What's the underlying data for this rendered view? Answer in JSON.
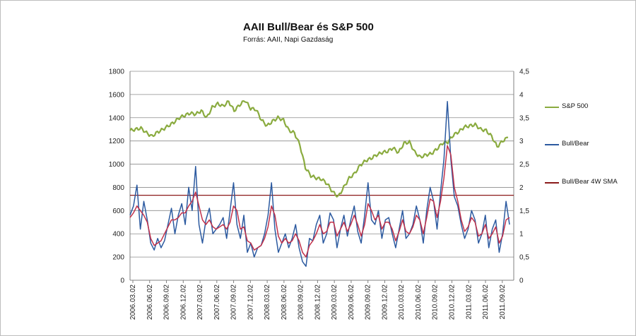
{
  "chart_data": {
    "type": "line",
    "title": "AAII Bull/Bear és S&P 500",
    "subtitle": "Forrás: AAII, Napi Gazdaság",
    "left_axis": {
      "min": 0,
      "max": 1800,
      "ticks": [
        "0",
        "200",
        "400",
        "600",
        "800",
        "1000",
        "1200",
        "1400",
        "1600",
        "1800"
      ]
    },
    "right_axis": {
      "min": 0,
      "max": 4.5,
      "ticks": [
        "0",
        "0,5",
        "1",
        "1,5",
        "2",
        "2,5",
        "3",
        "3,5",
        "4",
        "4,5"
      ]
    },
    "x_tick_labels": [
      "2006.03.02",
      "2006.06.02",
      "2006.09.02",
      "2006.12.02",
      "2007.03.02",
      "2007.06.02",
      "2007.09.02",
      "2007.12.02",
      "2008.03.02",
      "2008.06.02",
      "2008.09.02",
      "2008.12.02",
      "2009.03.02",
      "2009.06.02",
      "2009.09.02",
      "2009.12.02",
      "2010.03.02",
      "2010.06.02",
      "2010.09.02",
      "2010.12.02",
      "2011.03.02",
      "2011.06.02",
      "2011.09.02"
    ],
    "reference_line": {
      "axis": "right",
      "value": 1.83,
      "color": "#8b1a1a"
    },
    "series": [
      {
        "name": "S&P 500",
        "axis": "left",
        "color": "#8aab3f",
        "anchors_month_index": [
          0,
          1,
          2,
          3,
          4,
          5,
          6,
          7,
          8,
          9,
          10,
          11,
          12,
          13,
          14,
          15,
          16,
          17,
          18,
          19,
          20,
          21,
          22,
          23,
          24,
          25,
          26,
          27,
          28,
          29,
          30,
          31,
          32,
          33,
          34,
          35,
          36,
          37,
          38,
          39,
          40,
          41,
          42,
          43,
          44,
          45,
          46,
          47,
          48,
          49,
          50,
          51,
          52,
          53,
          54,
          55,
          56,
          57,
          58,
          59,
          60,
          61,
          62,
          63,
          64,
          65,
          66,
          67,
          68,
          69
        ],
        "values": [
          1290,
          1300,
          1310,
          1270,
          1240,
          1275,
          1300,
          1330,
          1360,
          1400,
          1420,
          1440,
          1430,
          1460,
          1400,
          1490,
          1520,
          1500,
          1540,
          1460,
          1510,
          1550,
          1480,
          1470,
          1380,
          1330,
          1370,
          1400,
          1380,
          1290,
          1270,
          1165,
          970,
          900,
          880,
          870,
          830,
          760,
          720,
          800,
          880,
          920,
          990,
          1030,
          1050,
          1080,
          1100,
          1110,
          1140,
          1100,
          1180,
          1190,
          1100,
          1060,
          1080,
          1090,
          1130,
          1180,
          1190,
          1250,
          1280,
          1320,
          1330,
          1340,
          1300,
          1290,
          1240,
          1150,
          1200,
          1230
        ]
      },
      {
        "name": "Bull/Bear",
        "axis": "right",
        "color": "#2c5aa0",
        "values": [
          1.4,
          1.6,
          2.05,
          1.1,
          1.7,
          1.3,
          0.8,
          0.65,
          0.9,
          0.7,
          0.85,
          1.2,
          1.55,
          1.0,
          1.4,
          1.65,
          1.2,
          2.0,
          1.5,
          2.45,
          1.2,
          0.8,
          1.3,
          1.55,
          1.0,
          1.1,
          1.2,
          1.35,
          0.9,
          1.5,
          2.1,
          1.2,
          0.9,
          1.4,
          0.6,
          0.8,
          0.5,
          0.7,
          0.75,
          1.0,
          1.4,
          2.1,
          1.1,
          0.6,
          0.8,
          1.0,
          0.7,
          0.9,
          1.2,
          0.7,
          0.4,
          0.3,
          0.9,
          0.85,
          1.2,
          1.4,
          0.8,
          1.0,
          1.45,
          1.3,
          0.7,
          1.1,
          1.4,
          0.95,
          1.3,
          1.6,
          1.05,
          0.8,
          1.4,
          2.1,
          1.3,
          1.2,
          1.5,
          0.9,
          1.3,
          1.35,
          1.0,
          0.7,
          1.1,
          1.5,
          0.9,
          1.0,
          1.2,
          1.6,
          1.3,
          0.8,
          1.5,
          2.0,
          1.7,
          1.1,
          1.9,
          2.6,
          3.85,
          2.6,
          1.8,
          1.6,
          1.2,
          0.9,
          1.1,
          1.5,
          1.3,
          0.8,
          1.0,
          1.4,
          0.7,
          1.1,
          1.3,
          0.6,
          1.0,
          1.7,
          1.2
        ]
      },
      {
        "name": "Bull/Bear 4W SMA",
        "axis": "right",
        "color": "#c0304a",
        "values": [
          1.35,
          1.45,
          1.6,
          1.5,
          1.4,
          1.25,
          0.9,
          0.75,
          0.8,
          0.85,
          1.0,
          1.15,
          1.3,
          1.3,
          1.35,
          1.45,
          1.45,
          1.6,
          1.7,
          1.9,
          1.6,
          1.3,
          1.2,
          1.3,
          1.15,
          1.1,
          1.15,
          1.2,
          1.1,
          1.25,
          1.6,
          1.5,
          1.1,
          1.15,
          0.85,
          0.8,
          0.65,
          0.7,
          0.75,
          0.9,
          1.15,
          1.6,
          1.4,
          0.95,
          0.8,
          0.9,
          0.8,
          0.85,
          1.0,
          0.85,
          0.6,
          0.5,
          0.75,
          0.85,
          1.0,
          1.2,
          1.0,
          1.05,
          1.25,
          1.25,
          0.95,
          1.1,
          1.25,
          1.05,
          1.2,
          1.4,
          1.2,
          0.95,
          1.2,
          1.65,
          1.5,
          1.3,
          1.4,
          1.1,
          1.25,
          1.25,
          1.1,
          0.85,
          1.05,
          1.3,
          1.05,
          1.0,
          1.15,
          1.4,
          1.3,
          1.0,
          1.35,
          1.75,
          1.7,
          1.35,
          1.7,
          2.2,
          2.9,
          2.7,
          2.0,
          1.7,
          1.3,
          1.05,
          1.15,
          1.35,
          1.25,
          0.95,
          1.0,
          1.2,
          0.9,
          1.0,
          1.15,
          0.8,
          0.95,
          1.3,
          1.35
        ]
      }
    ]
  },
  "legend": {
    "sp500": "S&P 500",
    "bullbear": "Bull/Bear",
    "sma": "Bull/Bear 4W SMA"
  }
}
